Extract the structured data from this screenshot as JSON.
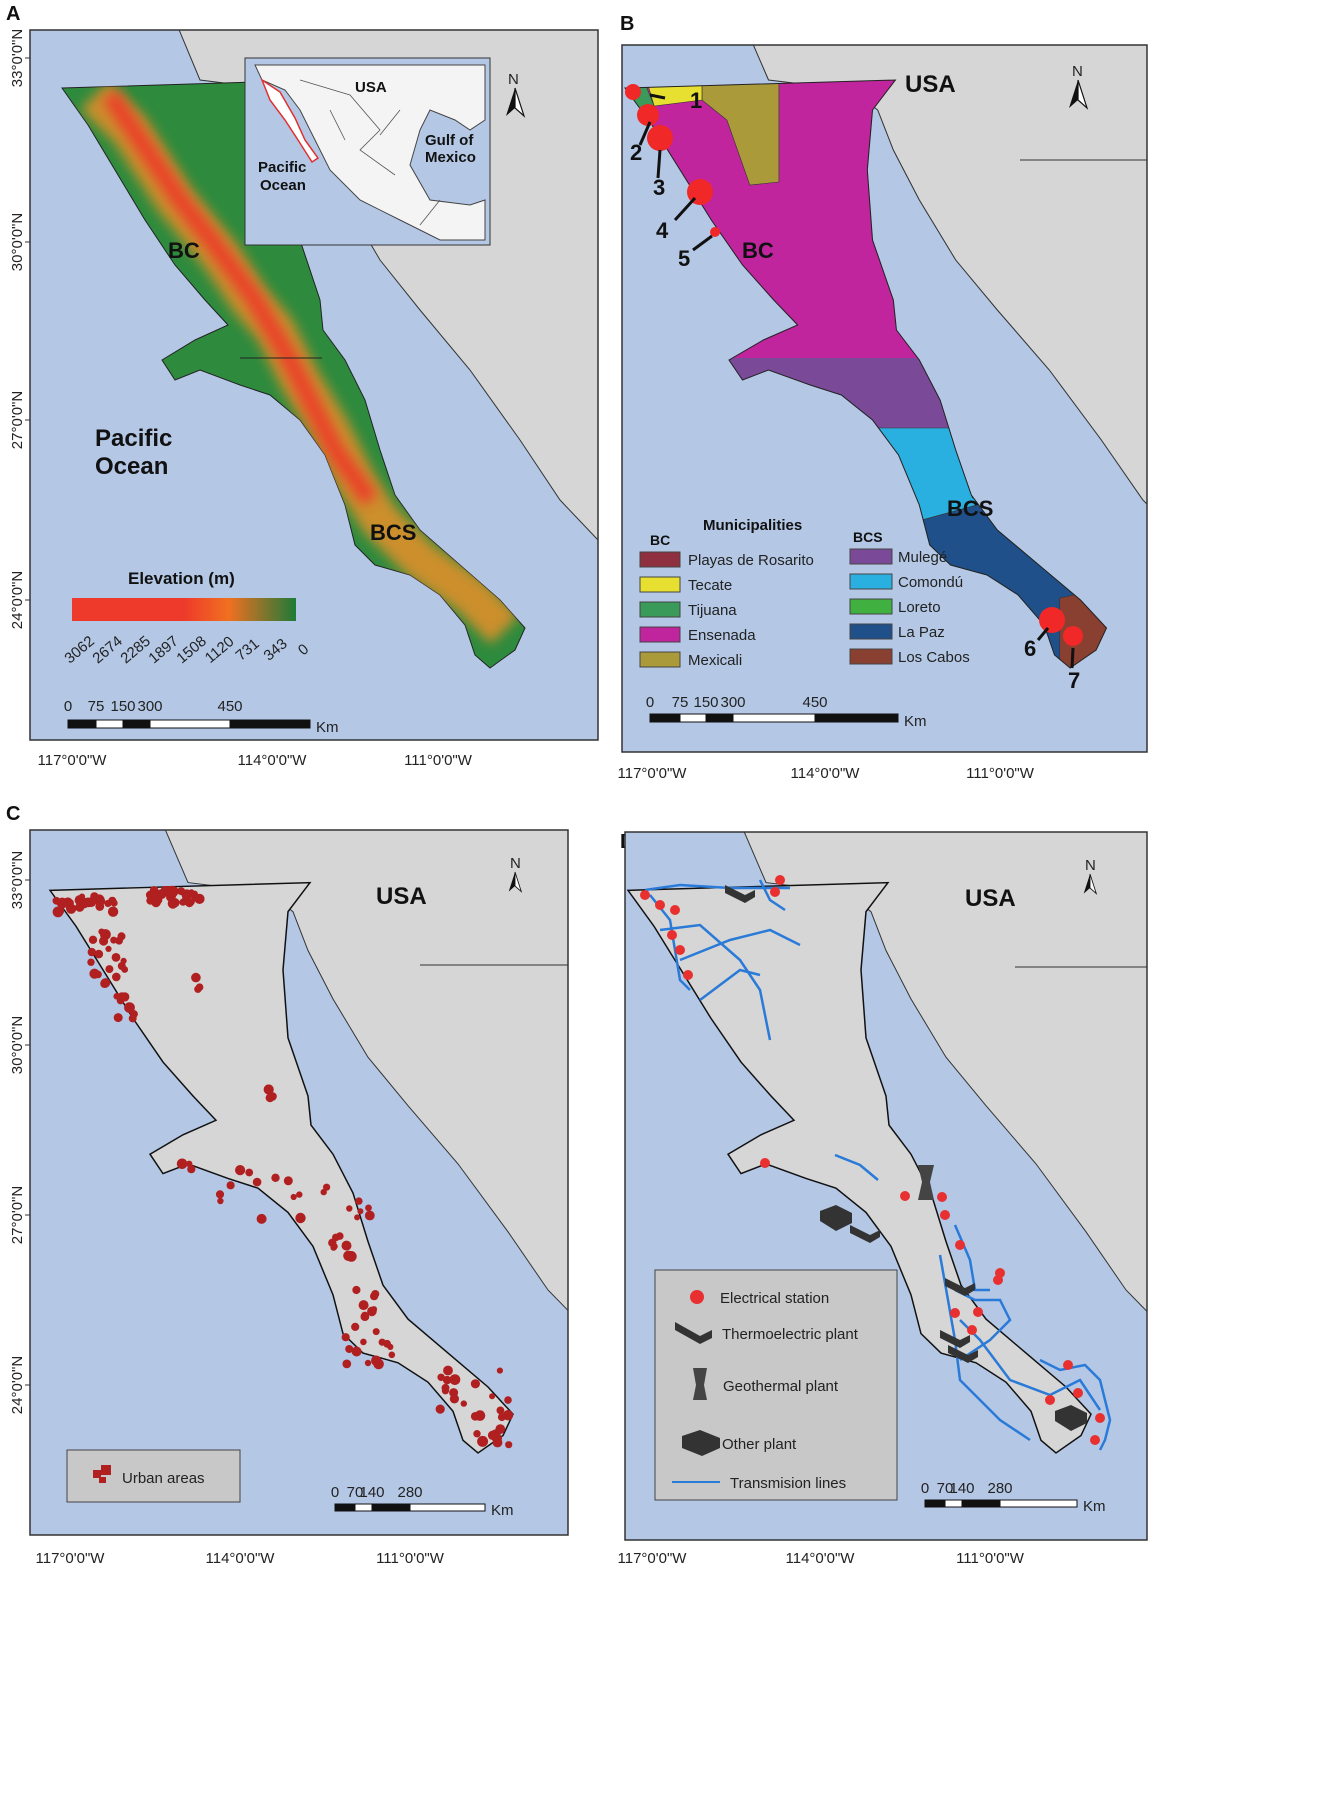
{
  "panels": {
    "A": {
      "letter": "A",
      "labels": {
        "bc": "BC",
        "bcs": "BCS",
        "ocean1": "Pacific",
        "ocean2": "Ocean"
      },
      "inset": {
        "usa": "USA",
        "gulf1": "Gulf of",
        "gulf2": "Mexico",
        "pac1": "Pacific",
        "pac2": "Ocean"
      },
      "elevation": {
        "title": "Elevation (m)",
        "ticks": [
          "3062",
          "2674",
          "2285",
          "1897",
          "1508",
          "1120",
          "731",
          "343",
          "0"
        ],
        "colors": [
          "#ee3a2a",
          "#ee3a2a",
          "#f07020",
          "#1e7a38"
        ]
      },
      "scale": {
        "ticks": [
          "0",
          "75",
          "150",
          "300",
          "450"
        ],
        "unit": "Km"
      },
      "lat": [
        "33°0'0\"N",
        "30°0'0\"N",
        "27°0'0\"N",
        "24°0'0\"N"
      ],
      "lon": [
        "117°0'0\"W",
        "114°0'0\"W",
        "111°0'0\"W"
      ]
    },
    "B": {
      "letter": "B",
      "labels": {
        "usa": "USA",
        "bc": "BC",
        "bcs": "BCS"
      },
      "sites": [
        "1",
        "2",
        "3",
        "4",
        "5",
        "6",
        "7"
      ],
      "legend": {
        "title": "Municipalities",
        "bc_header": "BC",
        "bcs_header": "BCS",
        "bc": [
          {
            "name": "Playas de Rosarito",
            "color": "#8e3040"
          },
          {
            "name": "Tecate",
            "color": "#e8e030"
          },
          {
            "name": "Tijuana",
            "color": "#3a9a5a"
          },
          {
            "name": "Ensenada",
            "color": "#c0259e"
          },
          {
            "name": "Mexicali",
            "color": "#aa9a3a"
          }
        ],
        "bcs": [
          {
            "name": "Mulegé",
            "color": "#7a4a98"
          },
          {
            "name": "Comondú",
            "color": "#2ab0e0"
          },
          {
            "name": "Loreto",
            "color": "#40b040"
          },
          {
            "name": "La Paz",
            "color": "#20508a"
          },
          {
            "name": "Los Cabos",
            "color": "#8a4030"
          }
        ]
      },
      "scale": {
        "ticks": [
          "0",
          "75",
          "150",
          "300",
          "450"
        ],
        "unit": "Km"
      },
      "lon": [
        "117°0'0\"W",
        "114°0'0\"W",
        "111°0'0\"W"
      ]
    },
    "C": {
      "letter": "C",
      "labels": {
        "usa": "USA"
      },
      "legend": {
        "urban": "Urban areas",
        "urban_color": "#b02020"
      },
      "scale": {
        "ticks": [
          "0",
          "70",
          "140",
          "280"
        ],
        "unit": "Km"
      },
      "lat": [
        "33°0'0\"N",
        "30°0'0\"N",
        "27°0'0\"N",
        "24°0'0\"N"
      ],
      "lon": [
        "117°0'0\"W",
        "114°0'0\"W",
        "111°0'0\"W"
      ]
    },
    "D": {
      "letter": "D",
      "labels": {
        "usa": "USA"
      },
      "legend": {
        "station": "Electrical station",
        "thermo": "Thermoelectric plant",
        "geo": "Geothermal plant",
        "other": "Other plant",
        "lines": "Transmision lines",
        "station_color": "#e83030",
        "line_color": "#2a7ad8"
      },
      "scale": {
        "ticks": [
          "0",
          "70",
          "140",
          "280"
        ],
        "unit": "Km"
      },
      "lon": [
        "117°0'0\"W",
        "114°0'0\"W",
        "111°0'0\"W"
      ]
    }
  },
  "north_label": "N",
  "colors": {
    "ocean": "#b4c8e6",
    "land": "#d6d6d6",
    "lowland": "#2e8b3e"
  }
}
